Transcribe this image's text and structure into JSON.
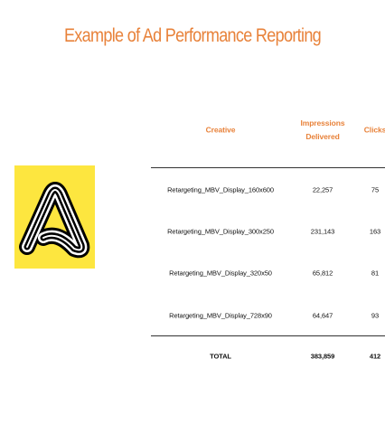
{
  "header": {
    "title": "Example of Ad Performance Reporting"
  },
  "table": {
    "columns": [
      "Creative",
      "Impressions Delivered",
      "Clicks"
    ],
    "rows": [
      [
        "Retargeting_MBV_Display_160x600",
        "22,257",
        "75"
      ],
      [
        "Retargeting_MBV_Display_300x250",
        "231,143",
        "163"
      ],
      [
        "Retargeting_MBV_Display_320x50",
        "65,812",
        "81"
      ],
      [
        "Retargeting_MBV_Display_728x90",
        "64,647",
        "93"
      ]
    ],
    "total": [
      "TOTAL",
      "383,859",
      "412"
    ]
  }
}
